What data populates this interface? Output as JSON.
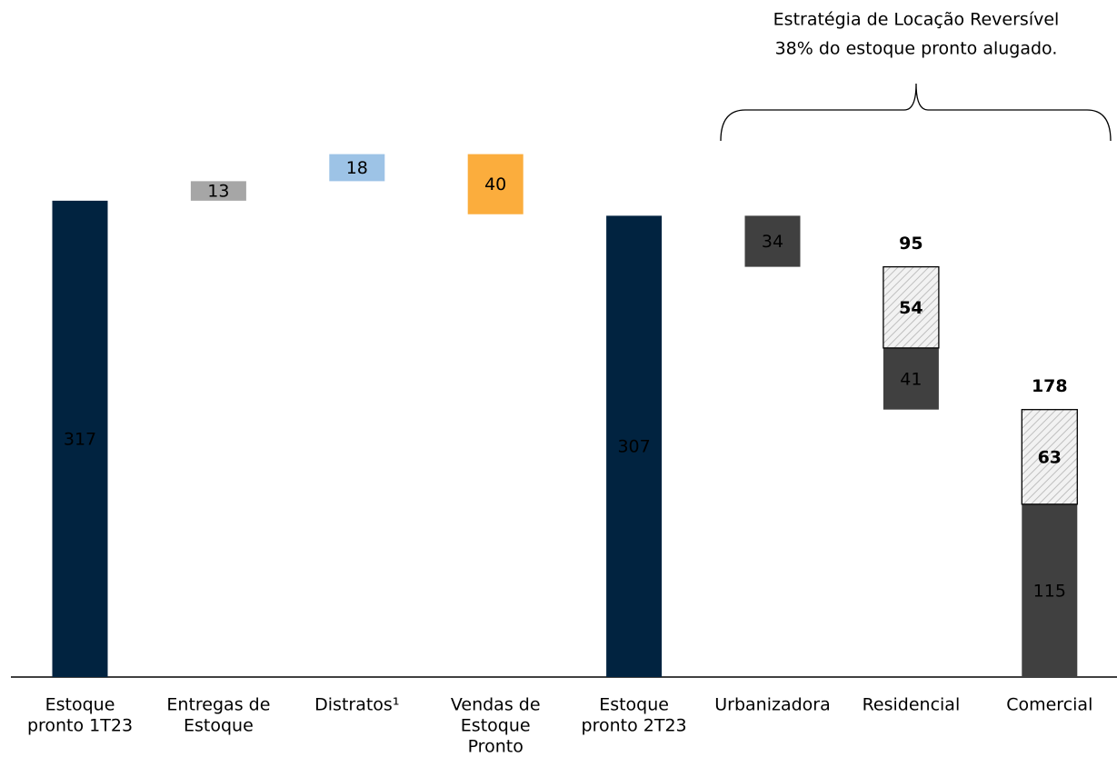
{
  "chart_data": {
    "type": "waterfall",
    "annotation": [
      "Estratégia de Locação Reversível",
      "38% do estoque pronto alugado."
    ],
    "ylim": [
      0,
      350
    ],
    "bars": [
      {
        "category": [
          "Estoque",
          "pronto 1T23"
        ],
        "kind": "total",
        "values": [
          317
        ],
        "colors": [
          "#012340"
        ]
      },
      {
        "category": [
          "Entregas de",
          "Estoque"
        ],
        "kind": "increase",
        "values": [
          13
        ],
        "colors": [
          "#a6a6a6"
        ]
      },
      {
        "category": [
          "Distratos¹"
        ],
        "kind": "increase",
        "values": [
          18
        ],
        "colors": [
          "#9dc3e6"
        ]
      },
      {
        "category": [
          "Vendas de",
          "Estoque",
          "Pronto"
        ],
        "kind": "decrease",
        "values": [
          40
        ],
        "colors": [
          "#fbad3d"
        ]
      },
      {
        "category": [
          "Estoque",
          "pronto 2T23"
        ],
        "kind": "total",
        "values": [
          307
        ],
        "colors": [
          "#012340"
        ]
      },
      {
        "category": [
          "Urbanizadora"
        ],
        "kind": "decrease",
        "values": [
          34
        ],
        "colors": [
          "#404040"
        ]
      },
      {
        "category": [
          "Residencial"
        ],
        "kind": "decrease",
        "values": [
          41,
          54
        ],
        "colors": [
          "#404040",
          "hatch"
        ],
        "total": 95
      },
      {
        "category": [
          "Comercial"
        ],
        "kind": "decrease",
        "values": [
          115,
          63
        ],
        "colors": [
          "#404040",
          "hatch"
        ],
        "total": 178
      }
    ]
  }
}
